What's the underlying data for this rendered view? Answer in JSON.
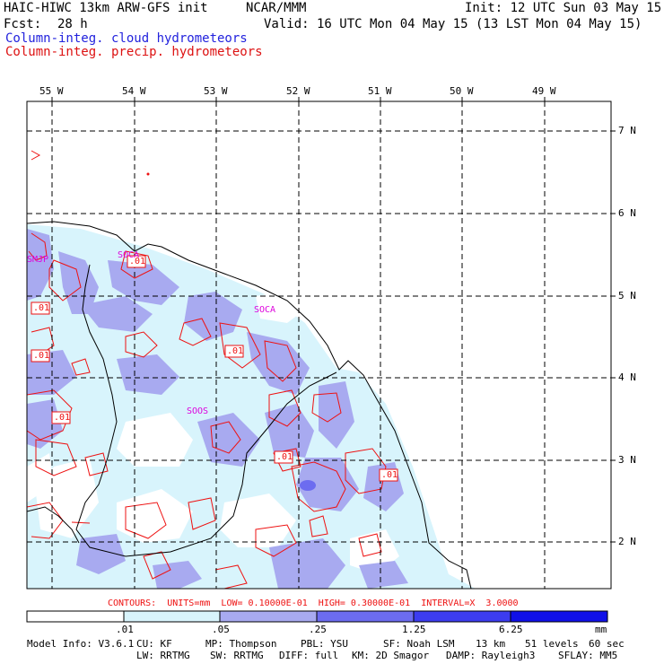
{
  "header": {
    "title": "HAIC-HIWC 13km ARW-GFS init",
    "institution": "NCAR/MMM",
    "init": "Init: 12 UTC Sun 03 May 15",
    "fcst_label": "Fcst:",
    "fcst_value": "28 h",
    "valid": "Valid: 16 UTC Mon 04 May 15 (13 LST Mon 04 May 15)",
    "field1": "Column-integ. cloud hydrometeors",
    "field2": "Column-integ. precip. hydrometeors"
  },
  "colors": {
    "field1": "#2222dd",
    "field2": "#dd1111",
    "shade_lightest": "#d8f4fc",
    "shade_light": "#a8aaf0",
    "shade_mid": "#6c6cf0",
    "shade_dark": "#3c3cf0",
    "shade_darkest": "#1010e8",
    "contour": "#ee1111",
    "labels": "#dd00dd"
  },
  "lon_labels": [
    "55 W",
    "54 W",
    "53 W",
    "52 W",
    "51 W",
    "50 W",
    "49 W"
  ],
  "lat_labels": [
    "7 N",
    "6 N",
    "5 N",
    "4 N",
    "3 N",
    "2 N"
  ],
  "station_labels": [
    "SMJP",
    "SOCA",
    "SOOS",
    "SOCA"
  ],
  "contour_labels": [
    ".01",
    ".01",
    ".01",
    ".01",
    ".01",
    ".01",
    ".01"
  ],
  "contour_info": "CONTOURS:  UNITS=mm  LOW= 0.10000E-01  HIGH= 0.30000E-01  INTERVAL=X  3.0000",
  "colorbar": {
    "ticks": [
      ".01",
      ".05",
      ".25",
      "1.25",
      "6.25"
    ],
    "unit": "mm"
  },
  "model_info": {
    "line1": [
      "Model Info: V3.6.1",
      "CU: KF",
      "MP: Thompson",
      "PBL: YSU",
      "SF: Noah LSM",
      "13 km",
      "51 levels",
      "60 sec"
    ],
    "line2": [
      "LW: RRTMG",
      "SW: RRTMG",
      "DIFF: full",
      "KM: 2D Smagor",
      "DAMP: Rayleigh3",
      "SFLAY: MM5"
    ]
  }
}
